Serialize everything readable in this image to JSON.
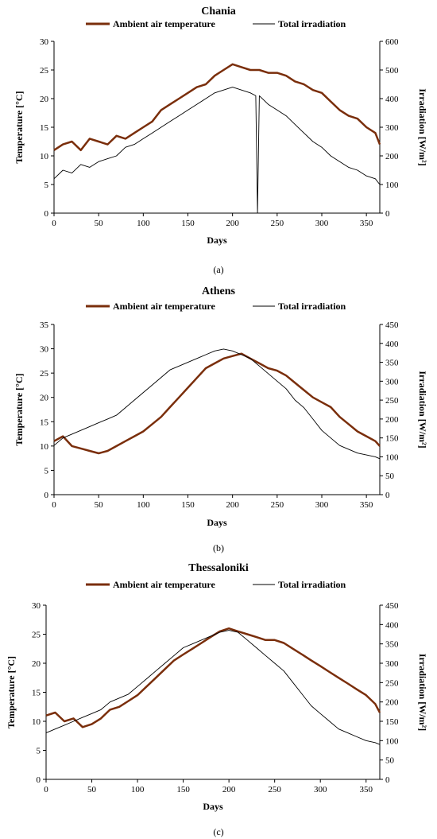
{
  "legend": {
    "temperature": "Ambient air temperature",
    "irradiation": "Total irradiation"
  },
  "axes": {
    "xlabel": "Days",
    "ylabel_left": "Temperature [°C]",
    "ylabel_right": "Irradiation [W/m²]"
  },
  "colors": {
    "temperature": "#7a2e0b",
    "irradiation": "#000000"
  },
  "chart_data": [
    {
      "type": "line",
      "title": "Chania",
      "caption": "(a)",
      "xlim": [
        0,
        365
      ],
      "xticks": [
        0,
        50,
        100,
        150,
        200,
        250,
        300,
        350
      ],
      "ylim_left": [
        0,
        30
      ],
      "yticks_left": [
        0,
        5,
        10,
        15,
        20,
        25,
        30
      ],
      "ylim_right": [
        0,
        600
      ],
      "yticks_right": [
        0,
        100,
        200,
        300,
        400,
        500,
        600
      ],
      "series": [
        {
          "name": "Ambient air temperature",
          "axis": "left",
          "x": [
            0,
            10,
            20,
            30,
            40,
            50,
            60,
            70,
            80,
            90,
            100,
            110,
            120,
            130,
            140,
            150,
            160,
            170,
            180,
            190,
            200,
            210,
            220,
            230,
            240,
            250,
            260,
            270,
            280,
            290,
            300,
            310,
            320,
            330,
            340,
            350,
            360,
            365
          ],
          "y": [
            11,
            12,
            12.5,
            11,
            13,
            12.5,
            12,
            13.5,
            13,
            14,
            15,
            16,
            18,
            19,
            20,
            21,
            22,
            22.5,
            24,
            25,
            26,
            25.5,
            25,
            25,
            24.5,
            24.5,
            24,
            23,
            22.5,
            21.5,
            21,
            19.5,
            18,
            17,
            16.5,
            15,
            14,
            12
          ]
        },
        {
          "name": "Total irradiation",
          "axis": "right",
          "x": [
            0,
            10,
            20,
            30,
            40,
            50,
            60,
            70,
            80,
            90,
            100,
            110,
            120,
            130,
            140,
            150,
            160,
            170,
            180,
            190,
            200,
            210,
            220,
            226,
            228,
            230,
            240,
            250,
            260,
            270,
            280,
            290,
            300,
            310,
            320,
            330,
            340,
            350,
            360,
            365
          ],
          "y": [
            120,
            150,
            140,
            170,
            160,
            180,
            190,
            200,
            230,
            240,
            260,
            280,
            300,
            320,
            340,
            360,
            380,
            400,
            420,
            430,
            440,
            430,
            420,
            410,
            0,
            410,
            380,
            360,
            340,
            310,
            280,
            250,
            230,
            200,
            180,
            160,
            150,
            130,
            120,
            100
          ]
        }
      ]
    },
    {
      "type": "line",
      "title": "Athens",
      "caption": "(b)",
      "xlim": [
        0,
        365
      ],
      "xticks": [
        0,
        50,
        100,
        150,
        200,
        250,
        300,
        350
      ],
      "ylim_left": [
        0,
        35
      ],
      "yticks_left": [
        0,
        5,
        10,
        15,
        20,
        25,
        30,
        35
      ],
      "ylim_right": [
        0,
        450
      ],
      "yticks_right": [
        0,
        50,
        100,
        150,
        200,
        250,
        300,
        350,
        400,
        450
      ],
      "series": [
        {
          "name": "Ambient air temperature",
          "axis": "left",
          "x": [
            0,
            10,
            20,
            30,
            40,
            50,
            60,
            70,
            80,
            90,
            100,
            110,
            120,
            130,
            140,
            150,
            160,
            170,
            180,
            190,
            200,
            210,
            220,
            230,
            240,
            250,
            260,
            270,
            280,
            290,
            300,
            310,
            320,
            330,
            340,
            350,
            360,
            365
          ],
          "y": [
            11,
            12,
            10,
            9.5,
            9,
            8.5,
            9,
            10,
            11,
            12,
            13,
            14.5,
            16,
            18,
            20,
            22,
            24,
            26,
            27,
            28,
            28.5,
            29,
            28,
            27,
            26,
            25.5,
            24.5,
            23,
            21.5,
            20,
            19,
            18,
            16,
            14.5,
            13,
            12,
            11,
            10
          ]
        },
        {
          "name": "Total irradiation",
          "axis": "right",
          "x": [
            0,
            10,
            20,
            30,
            40,
            50,
            60,
            70,
            80,
            90,
            100,
            110,
            120,
            130,
            140,
            150,
            160,
            170,
            180,
            190,
            200,
            210,
            220,
            230,
            240,
            250,
            260,
            270,
            280,
            290,
            300,
            310,
            320,
            330,
            340,
            350,
            360,
            365
          ],
          "y": [
            130,
            150,
            160,
            170,
            180,
            190,
            200,
            210,
            230,
            250,
            270,
            290,
            310,
            330,
            340,
            350,
            360,
            370,
            380,
            385,
            380,
            370,
            360,
            340,
            320,
            300,
            280,
            250,
            230,
            200,
            170,
            150,
            130,
            120,
            110,
            105,
            100,
            95
          ]
        }
      ]
    },
    {
      "type": "line",
      "title": "Thessaloniki",
      "caption": "(c)",
      "xlim": [
        0,
        365
      ],
      "xticks": [
        0,
        50,
        100,
        150,
        200,
        250,
        300,
        350
      ],
      "ylim_left": [
        0,
        30
      ],
      "yticks_left": [
        0,
        5,
        10,
        15,
        20,
        25,
        30
      ],
      "ylim_right": [
        0,
        450
      ],
      "yticks_right": [
        0,
        50,
        100,
        150,
        200,
        250,
        300,
        350,
        400,
        450
      ],
      "series": [
        {
          "name": "Ambient air temperature",
          "axis": "left",
          "x": [
            0,
            10,
            20,
            30,
            40,
            50,
            60,
            70,
            80,
            90,
            100,
            110,
            120,
            130,
            140,
            150,
            160,
            170,
            180,
            190,
            200,
            210,
            220,
            230,
            240,
            250,
            260,
            270,
            280,
            290,
            300,
            310,
            320,
            330,
            340,
            350,
            360,
            365
          ],
          "y": [
            11,
            11.5,
            10,
            10.5,
            9,
            9.5,
            10.5,
            12,
            12.5,
            13.5,
            14.5,
            16,
            17.5,
            19,
            20.5,
            21.5,
            22.5,
            23.5,
            24.5,
            25.5,
            26,
            25.5,
            25,
            24.5,
            24,
            24,
            23.5,
            22.5,
            21.5,
            20.5,
            19.5,
            18.5,
            17.5,
            16.5,
            15.5,
            14.5,
            13,
            11.5
          ]
        },
        {
          "name": "Total irradiation",
          "axis": "right",
          "x": [
            0,
            10,
            20,
            30,
            40,
            50,
            60,
            70,
            80,
            90,
            100,
            110,
            120,
            130,
            140,
            150,
            160,
            170,
            180,
            190,
            200,
            210,
            220,
            230,
            240,
            250,
            260,
            270,
            280,
            290,
            300,
            310,
            320,
            330,
            340,
            350,
            360,
            365
          ],
          "y": [
            120,
            130,
            140,
            150,
            160,
            170,
            180,
            200,
            210,
            220,
            240,
            260,
            280,
            300,
            320,
            340,
            350,
            360,
            370,
            380,
            385,
            380,
            360,
            340,
            320,
            300,
            280,
            250,
            220,
            190,
            170,
            150,
            130,
            120,
            110,
            100,
            95,
            90
          ]
        }
      ]
    }
  ]
}
